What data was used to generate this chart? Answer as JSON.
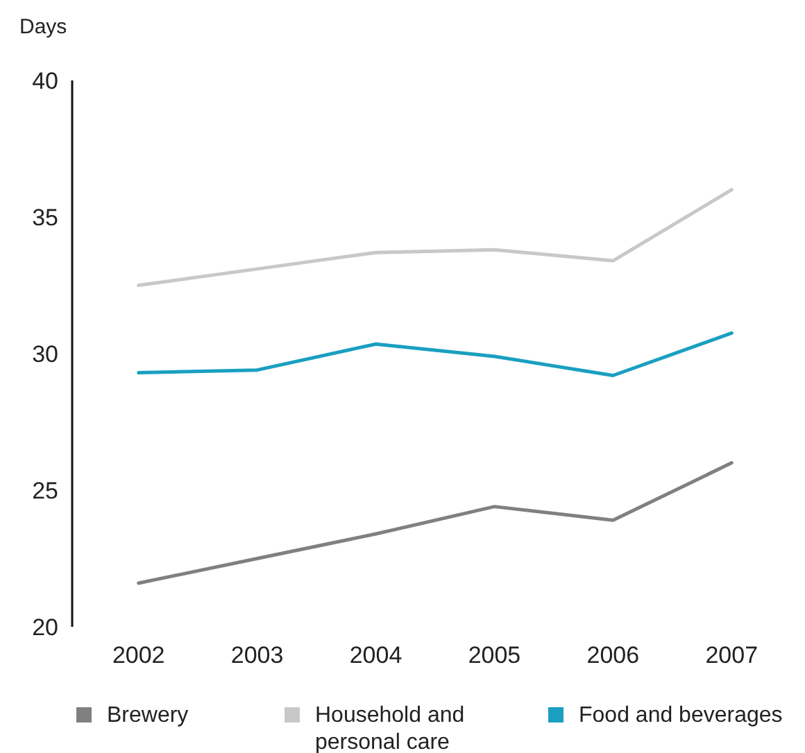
{
  "chart_data": {
    "type": "line",
    "ylabel": "Days",
    "categories": [
      "2002",
      "2003",
      "2004",
      "2005",
      "2006",
      "2007"
    ],
    "series": [
      {
        "name": "Brewery",
        "color": "#808080",
        "values": [
          21.6,
          22.5,
          23.4,
          24.4,
          23.9,
          26.0
        ]
      },
      {
        "name": "Household and personal care",
        "color": "#c8c8c8",
        "values": [
          32.5,
          33.1,
          33.7,
          33.8,
          33.4,
          36.0
        ]
      },
      {
        "name": "Food and beverages",
        "color": "#1a9fc0",
        "values": [
          29.3,
          29.4,
          30.35,
          29.9,
          29.2,
          30.75
        ]
      }
    ],
    "ylim": [
      20,
      40
    ],
    "yticks": [
      20,
      25,
      30,
      35,
      40
    ],
    "grid": false,
    "legend": "bottom",
    "marker": "none",
    "line_style": "solid"
  }
}
